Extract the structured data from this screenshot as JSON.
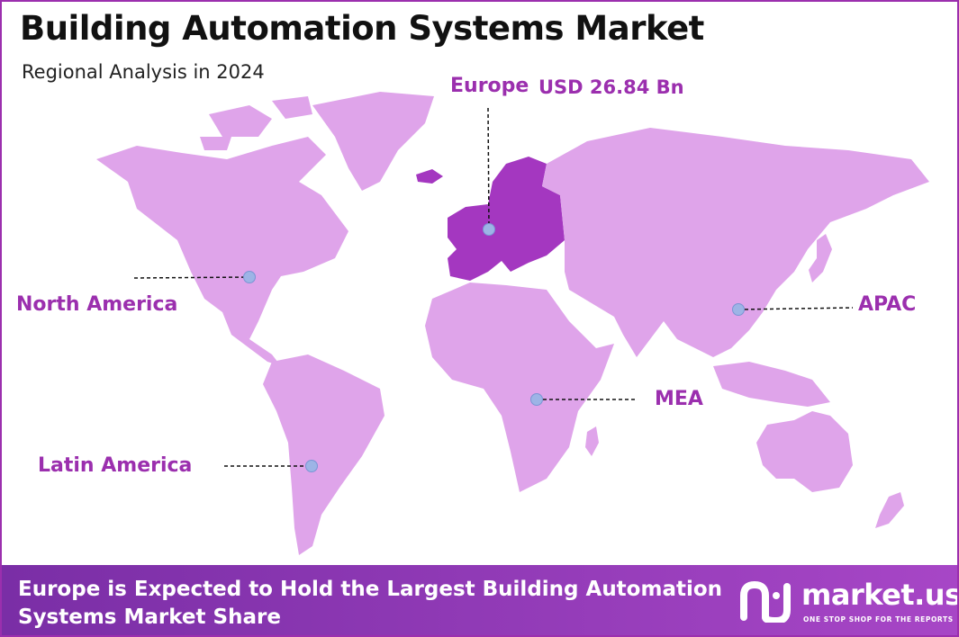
{
  "header": {
    "title": "Building Automation Systems Market",
    "subtitle": "Regional Analysis in 2024"
  },
  "regions": {
    "north_america": {
      "label": "North America"
    },
    "europe": {
      "label": "Europe",
      "value": "USD 26.84 Bn"
    },
    "apac": {
      "label": "APAC"
    },
    "mea": {
      "label": "MEA"
    },
    "latin_america": {
      "label": "Latin America"
    }
  },
  "footer": {
    "headline": "Europe is Expected to Hold the Largest Building Automation Systems Market Share"
  },
  "brand": {
    "name": "market.us",
    "tagline": "ONE STOP SHOP FOR THE REPORTS"
  },
  "colors": {
    "land": "#dfa4ea",
    "highlight": "#a437c0",
    "accent": "#9b2fae",
    "marker": "#9db4e6"
  }
}
